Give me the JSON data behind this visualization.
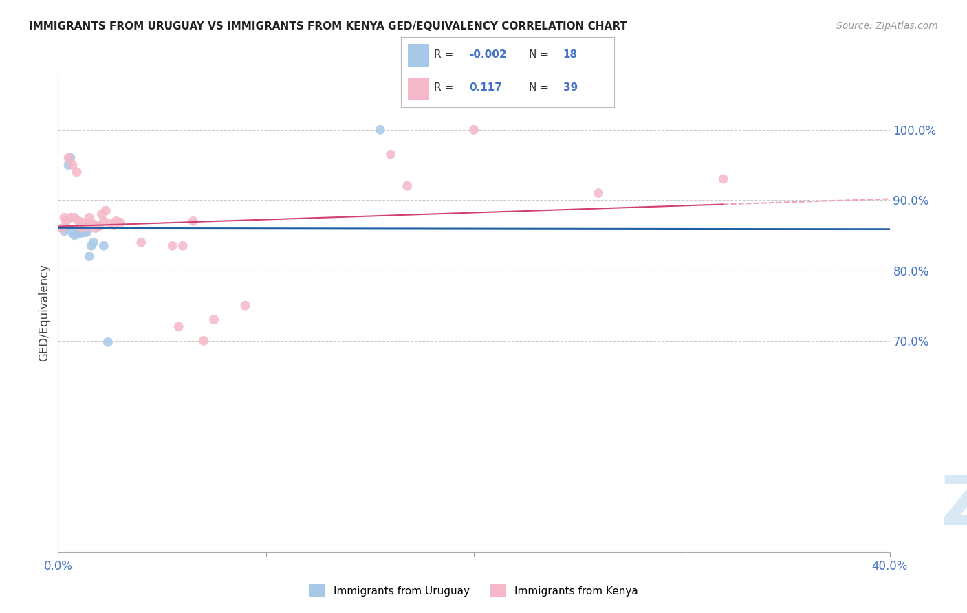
{
  "title": "IMMIGRANTS FROM URUGUAY VS IMMIGRANTS FROM KENYA GED/EQUIVALENCY CORRELATION CHART",
  "source": "Source: ZipAtlas.com",
  "ylabel": "GED/Equivalency",
  "ytick_labels": [
    "100.0%",
    "90.0%",
    "80.0%",
    "70.0%"
  ],
  "ytick_values": [
    1.0,
    0.9,
    0.8,
    0.7
  ],
  "xlim": [
    0.0,
    0.4
  ],
  "ylim": [
    0.4,
    1.08
  ],
  "uruguay_color": "#a8c8e8",
  "kenya_color": "#f5b8c8",
  "uruguay_line_color": "#2060a0",
  "kenya_line_solid_color": "#d04070",
  "kenya_line_dashed_color": "#f0a0b8",
  "r_uruguay": -0.002,
  "r_kenya": 0.117,
  "uruguay_points_x": [
    0.003,
    0.004,
    0.005,
    0.006,
    0.007,
    0.008,
    0.009,
    0.01,
    0.011,
    0.012,
    0.013,
    0.014,
    0.015,
    0.016,
    0.017,
    0.022,
    0.024,
    0.155
  ],
  "uruguay_points_y": [
    0.856,
    0.86,
    0.95,
    0.96,
    0.853,
    0.85,
    0.852,
    0.856,
    0.853,
    0.857,
    0.854,
    0.855,
    0.82,
    0.835,
    0.84,
    0.835,
    0.698,
    1.0
  ],
  "kenya_points_x": [
    0.002,
    0.003,
    0.004,
    0.005,
    0.006,
    0.007,
    0.008,
    0.009,
    0.01,
    0.011,
    0.012,
    0.013,
    0.014,
    0.015,
    0.016,
    0.017,
    0.018,
    0.019,
    0.02,
    0.021,
    0.022,
    0.023,
    0.025,
    0.027,
    0.028,
    0.03,
    0.04,
    0.055,
    0.06,
    0.065,
    0.07,
    0.16,
    0.26,
    0.32,
    0.168,
    0.058,
    0.075,
    0.09,
    0.2
  ],
  "kenya_points_y": [
    0.86,
    0.875,
    0.87,
    0.96,
    0.875,
    0.95,
    0.875,
    0.94,
    0.87,
    0.862,
    0.868,
    0.862,
    0.866,
    0.875,
    0.864,
    0.866,
    0.86,
    0.863,
    0.863,
    0.88,
    0.87,
    0.885,
    0.867,
    0.865,
    0.87,
    0.868,
    0.84,
    0.835,
    0.835,
    0.87,
    0.7,
    0.965,
    0.91,
    0.93,
    0.92,
    0.72,
    0.73,
    0.75,
    1.0
  ],
  "watermark_text": "ZIPatlas",
  "watermark_color": "#d8e8f5",
  "background_color": "#ffffff",
  "grid_color": "#cccccc",
  "dashed_grid_values": [
    0.7,
    0.8,
    0.9,
    1.0
  ],
  "xtick_positions": [
    0.0,
    0.1,
    0.2,
    0.3,
    0.4
  ],
  "xtick_labels_show": [
    "0.0%",
    "",
    "",
    "",
    "40.0%"
  ]
}
